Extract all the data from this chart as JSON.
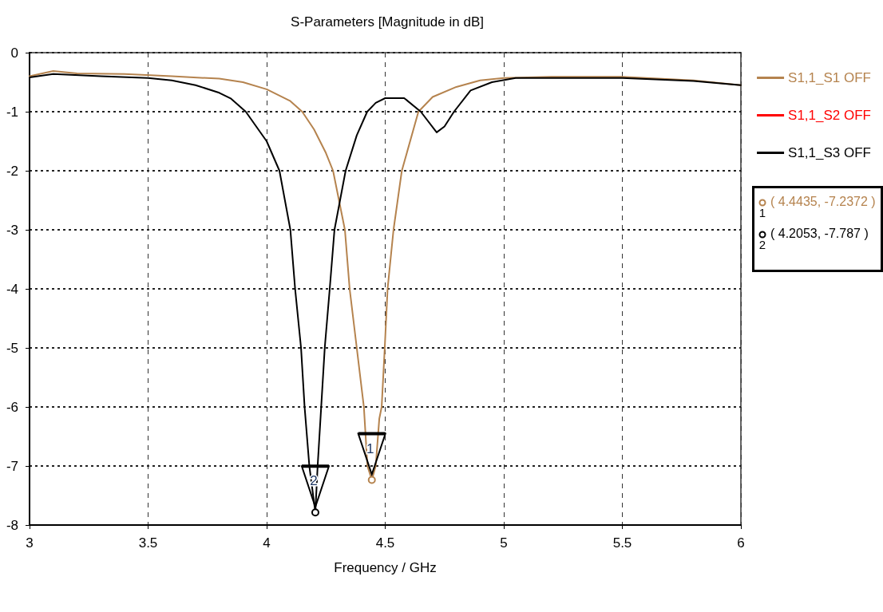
{
  "chart_data": {
    "type": "line",
    "title": "S-Parameters [Magnitude in dB]",
    "xlabel": "Frequency / GHz",
    "xlim": [
      3,
      6
    ],
    "xticks": [
      3,
      3.5,
      4,
      4.5,
      5,
      5.5,
      6
    ],
    "ylim": [
      -8,
      0
    ],
    "yticks": [
      -8,
      -7,
      -6,
      -5,
      -4,
      -3,
      -2,
      -1,
      0
    ],
    "grid": true,
    "legend": "top right",
    "marker": "none",
    "line_style": "solid",
    "series": [
      {
        "name": "S1,1_S1 OFF",
        "color": "#b5834e",
        "x": [
          3.0,
          3.1,
          3.2,
          3.4,
          3.6,
          3.8,
          3.9,
          4.0,
          4.1,
          4.15,
          4.2,
          4.25,
          4.28,
          4.33,
          4.35,
          4.38,
          4.41,
          4.425,
          4.4435,
          4.46,
          4.475,
          4.485,
          4.498,
          4.51,
          4.535,
          4.57,
          4.64,
          4.7,
          4.8,
          4.9,
          5.0,
          5.2,
          5.5,
          5.8,
          6.0
        ],
        "values": [
          -0.4,
          -0.31,
          -0.35,
          -0.36,
          -0.4,
          -0.44,
          -0.5,
          -0.62,
          -0.82,
          -1.0,
          -1.3,
          -1.7,
          -2.0,
          -3.0,
          -4.0,
          -5.0,
          -6.0,
          -7.0,
          -7.2372,
          -7.0,
          -6.2,
          -6.0,
          -5.0,
          -4.0,
          -3.0,
          -2.0,
          -1.0,
          -0.75,
          -0.58,
          -0.47,
          -0.43,
          -0.41,
          -0.41,
          -0.47,
          -0.55
        ]
      },
      {
        "name": "S1,1_S2 OFF",
        "color": "#ff0000"
      },
      {
        "name": "S1,1_S3 OFF",
        "color": "#000000",
        "x": [
          3.0,
          3.1,
          3.3,
          3.5,
          3.6,
          3.7,
          3.8,
          3.85,
          3.912,
          4.0,
          4.054,
          4.1,
          4.12,
          4.145,
          4.16,
          4.18,
          4.2053,
          4.215,
          4.23,
          4.245,
          4.266,
          4.286,
          4.333,
          4.38,
          4.424,
          4.46,
          4.5,
          4.58,
          4.65,
          4.717,
          4.75,
          4.79,
          4.86,
          4.95,
          5.05,
          5.5,
          5.8,
          6.0
        ],
        "values": [
          -0.42,
          -0.36,
          -0.4,
          -0.43,
          -0.47,
          -0.55,
          -0.68,
          -0.78,
          -1.0,
          -1.5,
          -2.0,
          -3.0,
          -4.0,
          -5.0,
          -6.0,
          -7.0,
          -7.787,
          -7.0,
          -6.0,
          -5.0,
          -4.0,
          -3.0,
          -2.0,
          -1.4,
          -1.0,
          -0.85,
          -0.77,
          -0.77,
          -1.0,
          -1.35,
          -1.25,
          -1.0,
          -0.64,
          -0.5,
          -0.43,
          -0.43,
          -0.48,
          -0.55
        ]
      }
    ],
    "annotations": [
      {
        "text": "1",
        "x": 4.4435,
        "y": -7.2372
      },
      {
        "text": "2",
        "x": 4.2053,
        "y": -7.787
      },
      "( 4.4435, -7.2372 )",
      "( 4.2053, -7.787 )"
    ]
  }
}
